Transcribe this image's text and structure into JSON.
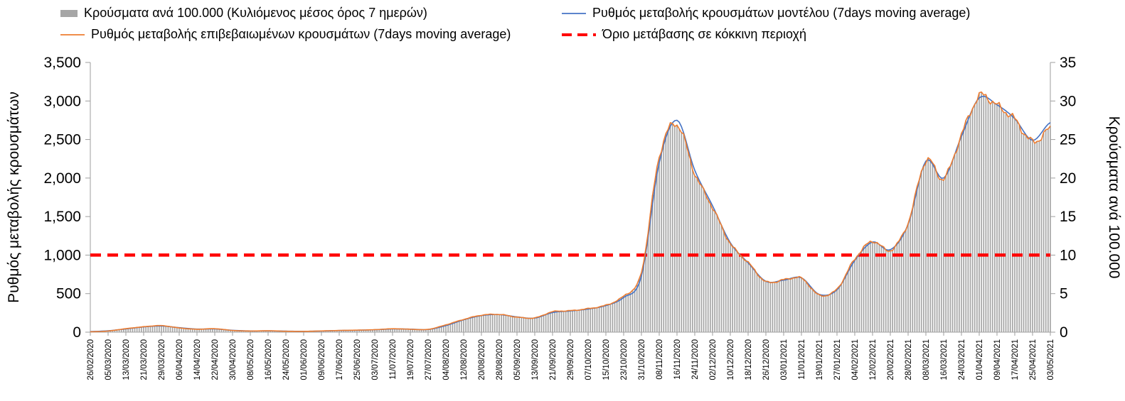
{
  "chart_data": {
    "type": "combo",
    "title": "",
    "grid": "off",
    "legend_position": "top",
    "x_labels": [
      "26/02/2020",
      "05/03/2020",
      "13/03/2020",
      "21/03/2020",
      "29/03/2020",
      "06/04/2020",
      "14/04/2020",
      "22/04/2020",
      "30/04/2020",
      "08/05/2020",
      "16/05/2020",
      "24/05/2020",
      "01/06/2020",
      "09/06/2020",
      "17/06/2020",
      "25/06/2020",
      "03/07/2020",
      "11/07/2020",
      "19/07/2020",
      "27/07/2020",
      "04/08/2020",
      "12/08/2020",
      "20/08/2020",
      "28/08/2020",
      "05/09/2020",
      "13/09/2020",
      "21/09/2020",
      "29/09/2020",
      "07/10/2020",
      "15/10/2020",
      "23/10/2020",
      "31/10/2020",
      "08/11/2020",
      "16/11/2020",
      "24/11/2020",
      "02/12/2020",
      "10/12/2020",
      "18/12/2020",
      "26/12/2020",
      "03/01/2021",
      "11/01/2021",
      "19/01/2021",
      "27/01/2021",
      "04/02/2021",
      "12/02/2021",
      "20/02/2021",
      "28/02/2021",
      "08/03/2021",
      "16/03/2021",
      "24/03/2021",
      "01/04/2021",
      "09/04/2021",
      "17/04/2021",
      "25/04/2021",
      "03/05/2021"
    ],
    "x_tick_interval_days": 8,
    "left_axis": {
      "title": "Ρυθμός μεταβολής κρουσμάτων",
      "min": 0,
      "max": 3500,
      "step": 500,
      "tick_labels": [
        "0",
        "500",
        "1,000",
        "1,500",
        "2,000",
        "2,500",
        "3,000",
        "3,500"
      ]
    },
    "right_axis": {
      "title": "Κρούσματα ανά 100.000",
      "min": 0,
      "max": 35,
      "step": 5,
      "tick_labels": [
        "0",
        "5",
        "10",
        "15",
        "20",
        "25",
        "30",
        "35"
      ]
    },
    "series": [
      {
        "name": "Κρούσματα ανά 100.000 (Κυλιόμενος μέσος όρος 7 ημερών)",
        "type": "bar",
        "axis": "right",
        "color": "#a6a6a6",
        "values": [
          0.1,
          0.2,
          0.5,
          0.7,
          0.9,
          0.6,
          0.4,
          0.5,
          0.2,
          0.2,
          0.2,
          0.1,
          0.1,
          0.2,
          0.2,
          0.3,
          0.3,
          0.4,
          0.4,
          0.4,
          1.0,
          1.7,
          2.2,
          2.3,
          2.0,
          1.9,
          2.7,
          2.8,
          3.1,
          3.5,
          4.7,
          7.8,
          22.8,
          27.0,
          20.6,
          16.2,
          11.5,
          9.1,
          6.6,
          6.8,
          7.0,
          4.8,
          5.6,
          9.5,
          11.8,
          10.6,
          14.2,
          22.3,
          19.9,
          25.6,
          30.6,
          29.4,
          27.6,
          24.7,
          26.4
        ]
      },
      {
        "name": "Ρυθμός μεταβολής κρουσμάτων μοντέλου (7days moving average)",
        "type": "line",
        "axis": "left",
        "color": "#4472c4",
        "values": [
          8,
          18,
          42,
          68,
          80,
          58,
          40,
          42,
          24,
          16,
          17,
          13,
          11,
          15,
          21,
          25,
          31,
          42,
          39,
          35,
          85,
          160,
          215,
          228,
          198,
          183,
          255,
          275,
          300,
          345,
          450,
          730,
          2200,
          2750,
          2100,
          1640,
          1160,
          900,
          660,
          675,
          705,
          490,
          550,
          930,
          1170,
          1070,
          1400,
          2220,
          2000,
          2540,
          3040,
          2950,
          2770,
          2490,
          2720
        ]
      },
      {
        "name": "Ρυθμός μεταβολής επιβεβαιωμένων κρουσμάτων (7days moving average)",
        "type": "line",
        "axis": "left",
        "color": "#ed7d31",
        "values": [
          5,
          15,
          45,
          70,
          85,
          55,
          38,
          45,
          22,
          15,
          18,
          12,
          10,
          16,
          22,
          26,
          32,
          44,
          38,
          36,
          95,
          165,
          220,
          230,
          195,
          185,
          265,
          278,
          305,
          350,
          470,
          780,
          2280,
          2700,
          2060,
          1620,
          1150,
          905,
          655,
          680,
          700,
          480,
          560,
          950,
          1180,
          1060,
          1420,
          2230,
          1990,
          2560,
          3060,
          2940,
          2760,
          2470,
          2640
        ]
      },
      {
        "name": "Όριο μετάβασης σε κόκκινη περιοχή",
        "type": "dashed-line",
        "axis": "left",
        "color": "#ff0000",
        "value_left_axis": 1000,
        "value_right_axis": 10
      }
    ]
  }
}
